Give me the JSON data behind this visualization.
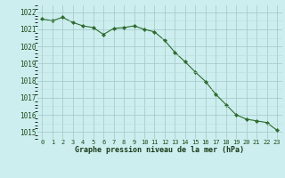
{
  "hours": [
    0,
    1,
    2,
    3,
    4,
    5,
    6,
    7,
    8,
    9,
    10,
    11,
    12,
    13,
    14,
    15,
    16,
    17,
    18,
    19,
    20,
    21,
    22,
    23
  ],
  "pressure": [
    1021.6,
    1021.5,
    1021.7,
    1021.4,
    1021.2,
    1021.1,
    1020.7,
    1021.05,
    1021.1,
    1021.2,
    1021.0,
    1020.85,
    1020.35,
    1019.65,
    1019.1,
    1018.5,
    1017.95,
    1017.2,
    1016.6,
    1016.0,
    1015.75,
    1015.65,
    1015.55,
    1015.1
  ],
  "ylim": [
    1014.6,
    1022.4
  ],
  "yticks": [
    1015,
    1016,
    1017,
    1018,
    1019,
    1020,
    1021,
    1022
  ],
  "xlabel": "Graphe pression niveau de la mer (hPa)",
  "line_color": "#2d6a2d",
  "marker_color": "#2d6a2d",
  "bg_color": "#cceeee",
  "grid_major_color": "#aacccc",
  "grid_minor_color": "#bbdddd",
  "tick_label_color": "#1a4a1a",
  "xlabel_color": "#1a3a1a",
  "fig_width": 3.2,
  "fig_height": 2.0,
  "dpi": 100
}
